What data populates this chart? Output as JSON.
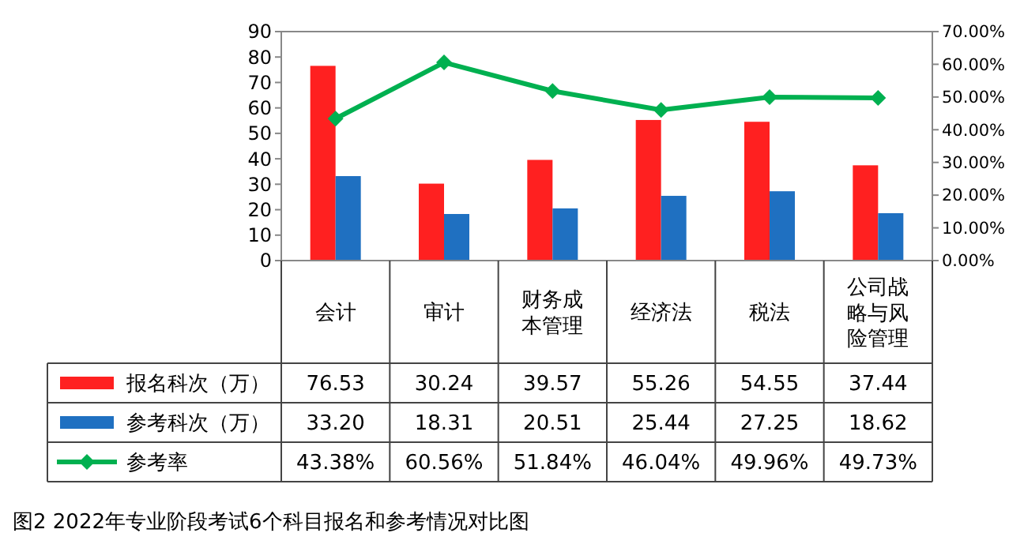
{
  "chart_data": {
    "type": "bar",
    "title": "图2  2022年专业阶段考试6个科目报名和参考情况对比图",
    "categories": [
      "会计",
      "审计",
      "财务成本管理",
      "经济法",
      "税法",
      "公司战略与风险管理"
    ],
    "series": [
      {
        "name": "报名科次（万）",
        "color": "#ff2020",
        "values": [
          76.53,
          30.24,
          39.57,
          55.26,
          54.55,
          37.44
        ],
        "value_labels": [
          "76.53",
          "30.24",
          "39.57",
          "55.26",
          "54.55",
          "37.44"
        ]
      },
      {
        "name": "参考科次（万）",
        "color": "#1f70c1",
        "values": [
          33.2,
          18.31,
          20.51,
          25.44,
          27.25,
          18.62
        ],
        "value_labels": [
          "33.20",
          "18.31",
          "20.51",
          "25.44",
          "27.25",
          "18.62"
        ]
      },
      {
        "name": "参考率",
        "type": "line",
        "axis": "y2",
        "color": "#00b050",
        "marker": "diamond",
        "values": [
          43.38,
          60.56,
          51.84,
          46.04,
          49.96,
          49.73
        ],
        "value_labels": [
          "43.38%",
          "60.56%",
          "51.84%",
          "46.04%",
          "49.96%",
          "49.73%"
        ]
      }
    ],
    "ylim": [
      0,
      90
    ],
    "yticks": [
      0,
      10,
      20,
      30,
      40,
      50,
      60,
      70,
      80,
      90
    ],
    "y2lim": [
      0,
      70
    ],
    "y2ticks": [
      {
        "value": 0,
        "label": "0.00%"
      },
      {
        "value": 10,
        "label": "10.00%"
      },
      {
        "value": 20,
        "label": "20.00%"
      },
      {
        "value": 30,
        "label": "30.00%"
      },
      {
        "value": 40,
        "label": "40.00%"
      },
      {
        "value": 50,
        "label": "50.00%"
      },
      {
        "value": 60,
        "label": "60.00%"
      },
      {
        "value": 70,
        "label": "70.00%"
      }
    ],
    "legend": "left",
    "grid": false
  }
}
